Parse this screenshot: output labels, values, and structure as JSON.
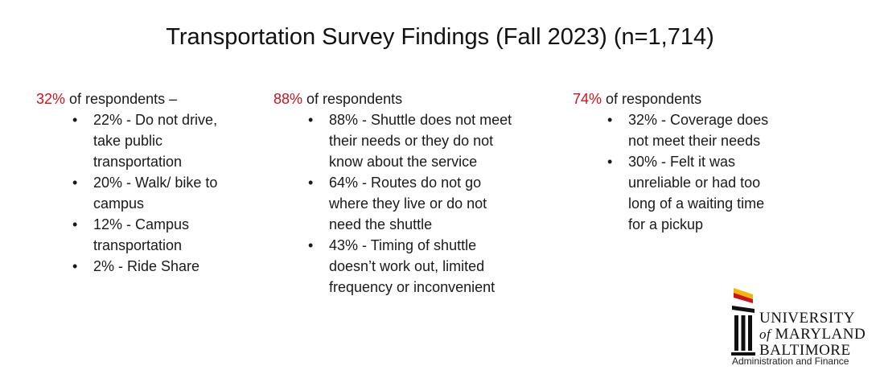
{
  "title": "Transportation Survey Findings (Fall 2023) (n=1,714)",
  "columns": [
    {
      "lead_pct": "32%",
      "lead_text": " of respondents –",
      "bullets": [
        "22% - Do not drive, take public transportation",
        "20% - Walk/ bike to campus",
        "12% - Campus transportation",
        "2% - Ride Share"
      ]
    },
    {
      "lead_pct": "88%",
      "lead_text": " of respondents",
      "bullets": [
        "88% - Shuttle does not meet their needs or they do not know about the service",
        "64% - Routes do not go where they live or do not need the shuttle",
        "43% - Timing of shuttle doesn’t work out, limited frequency or inconvenient"
      ]
    },
    {
      "lead_pct": "74%",
      "lead_text": " of respondents",
      "bullets": [
        "32% - Coverage does not meet their needs",
        "30% - Felt it was unreliable or had too long of a waiting time for a pickup"
      ]
    }
  ],
  "logo": {
    "line1": "UNIVERSITY",
    "line2_of": "of",
    "line2_rest": "MARYLAND",
    "line3": "BALTIMORE",
    "subtitle": "Administration and Finance"
  },
  "colors": {
    "accent_red": "#d0121b",
    "logo_gold": "#f2b705",
    "logo_red": "#d0121b",
    "text": "#1a1a1a"
  }
}
